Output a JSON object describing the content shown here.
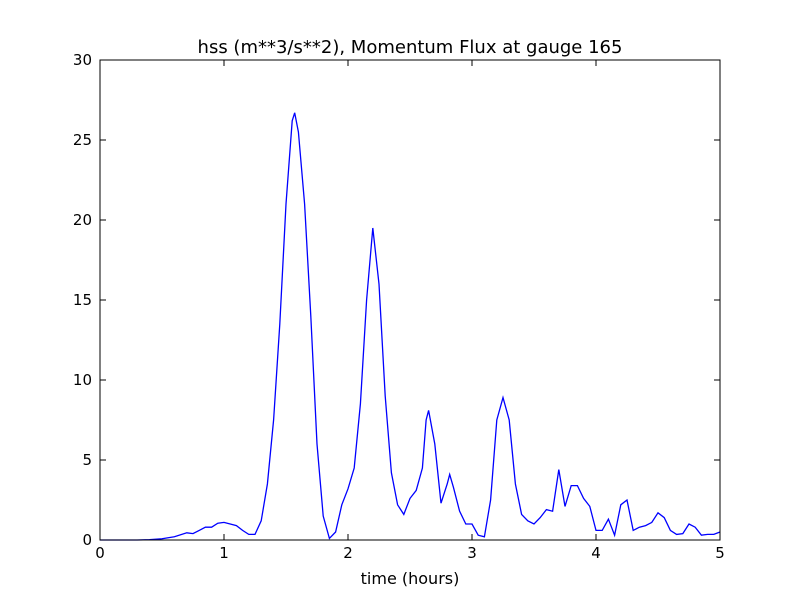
{
  "chart_data": {
    "type": "line",
    "title": "hss (m**3/s**2), Momentum Flux at gauge 165",
    "x_label": "time (hours)",
    "x": [
      0,
      0.1,
      0.2,
      0.3,
      0.4,
      0.5,
      0.6,
      0.7,
      0.75,
      0.8,
      0.85,
      0.9,
      0.95,
      1.0,
      1.05,
      1.1,
      1.15,
      1.2,
      1.25,
      1.3,
      1.35,
      1.4,
      1.45,
      1.5,
      1.55,
      1.57,
      1.6,
      1.65,
      1.7,
      1.75,
      1.8,
      1.85,
      1.9,
      1.95,
      2.0,
      2.05,
      2.1,
      2.15,
      2.2,
      2.25,
      2.3,
      2.35,
      2.4,
      2.45,
      2.5,
      2.55,
      2.6,
      2.63,
      2.65,
      2.7,
      2.75,
      2.8,
      2.82,
      2.85,
      2.9,
      2.95,
      3.0,
      3.05,
      3.1,
      3.15,
      3.2,
      3.25,
      3.3,
      3.35,
      3.4,
      3.45,
      3.5,
      3.55,
      3.6,
      3.65,
      3.7,
      3.75,
      3.8,
      3.85,
      3.9,
      3.95,
      4.0,
      4.05,
      4.1,
      4.15,
      4.2,
      4.25,
      4.3,
      4.35,
      4.4,
      4.45,
      4.5,
      4.55,
      4.6,
      4.65,
      4.7,
      4.75,
      4.8,
      4.85,
      4.9,
      4.95,
      5.0
    ],
    "series": [
      {
        "color": "#0000ff",
        "values": [
          0,
          0,
          0,
          0,
          0.02,
          0.08,
          0.2,
          0.45,
          0.4,
          0.6,
          0.8,
          0.8,
          1.05,
          1.1,
          1.0,
          0.9,
          0.6,
          0.35,
          0.35,
          1.2,
          3.5,
          7.5,
          13.5,
          21,
          26.2,
          26.7,
          25.5,
          21,
          14,
          6,
          1.5,
          0.1,
          0.5,
          2.2,
          3.2,
          4.5,
          8.5,
          15,
          19.5,
          16,
          9,
          4.2,
          2.2,
          1.6,
          2.6,
          3.1,
          4.5,
          7.5,
          8.1,
          6,
          2.3,
          3.5,
          4.1,
          3.3,
          1.8,
          1.0,
          1.0,
          0.3,
          0.2,
          2.5,
          7.5,
          8.9,
          7.5,
          3.5,
          1.6,
          1.2,
          1.0,
          1.4,
          1.9,
          1.8,
          4.4,
          2.1,
          3.4,
          3.4,
          2.6,
          2.1,
          0.6,
          0.6,
          1.3,
          0.3,
          2.2,
          2.5,
          0.6,
          0.8,
          0.9,
          1.1,
          1.7,
          1.4,
          0.6,
          0.35,
          0.4,
          1.0,
          0.8,
          0.3,
          0.35,
          0.35,
          0.5
        ]
      }
    ],
    "hlines": [
      {
        "y": 0,
        "color": "#000000",
        "dashed": true
      }
    ],
    "xlim": [
      0,
      5
    ],
    "xticks": [
      0,
      1,
      2,
      3,
      4,
      5
    ],
    "ylim": [
      0,
      30
    ],
    "yticks": [
      0,
      5,
      10,
      15,
      20,
      25,
      30
    ],
    "grid": false
  }
}
